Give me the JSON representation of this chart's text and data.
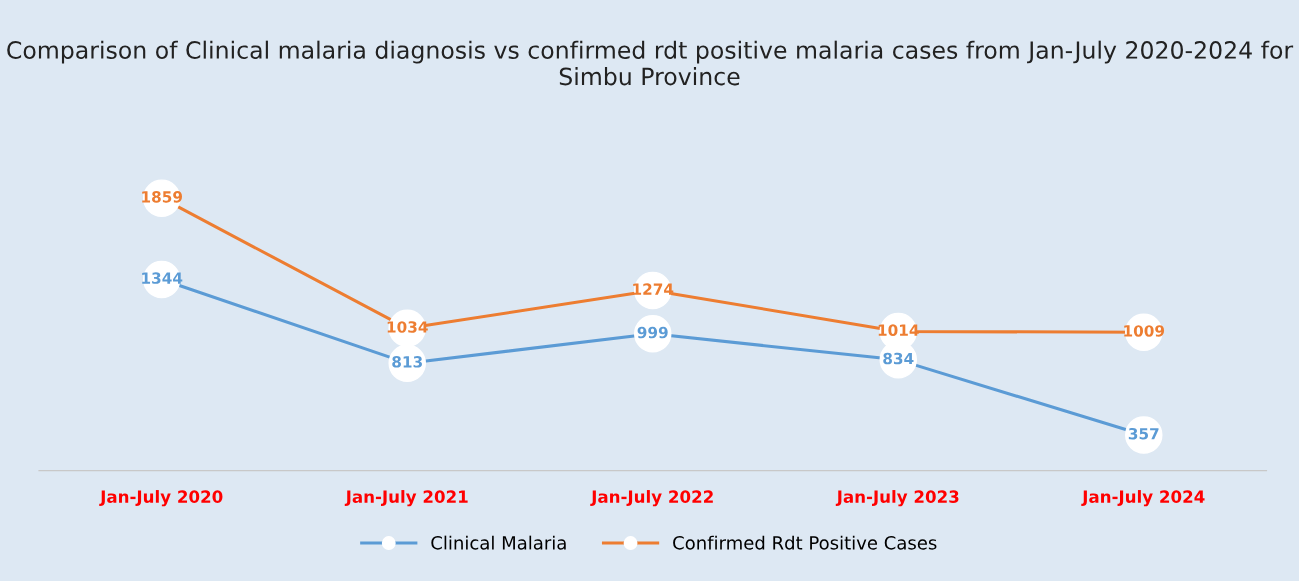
{
  "chart_data": {
    "type": "line",
    "title": "Comparison of Clinical malaria diagnosis vs confirmed rdt positive malaria cases from Jan-July 2020-2024 for Simbu Province",
    "categories": [
      "Jan-July 2020",
      "Jan-July 2021",
      "Jan-July 2022",
      "Jan-July 2023",
      "Jan-July 2024"
    ],
    "series": [
      {
        "name": "Clinical Malaria",
        "color": "#5b9bd5",
        "values": [
          1344,
          813,
          999,
          834,
          357
        ]
      },
      {
        "name": "Confirmed Rdt Positive Cases",
        "color": "#ed7d31",
        "values": [
          1859,
          1034,
          1274,
          1014,
          1009
        ]
      }
    ],
    "data_labels": true,
    "marker": "circle",
    "legend": "bottom",
    "grid": false,
    "tick_labels": "x"
  }
}
